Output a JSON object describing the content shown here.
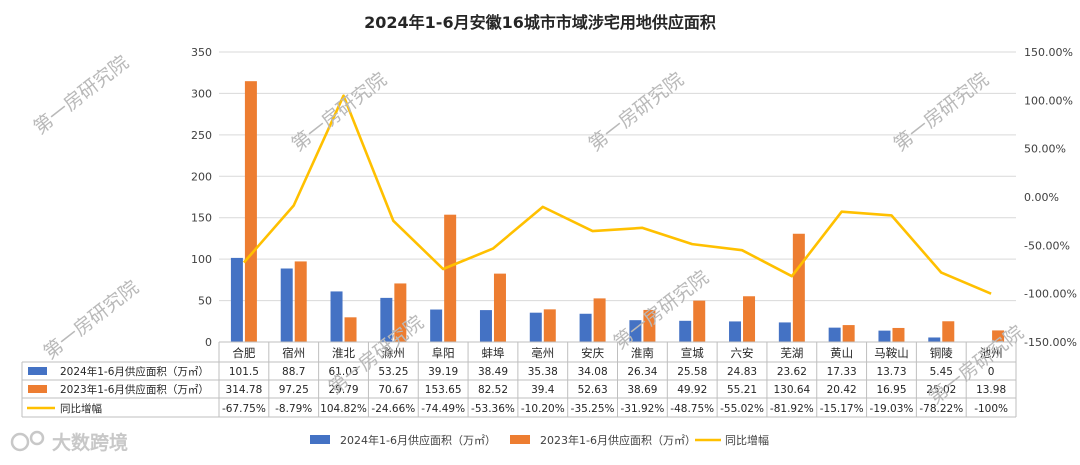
{
  "chart_data": {
    "type": "bar",
    "title": "2024年1-6月安徽16城市市域涉宅用地供应面积",
    "categories": [
      "合肥",
      "宿州",
      "淮北",
      "滁州",
      "阜阳",
      "蚌埠",
      "亳州",
      "安庆",
      "淮南",
      "宣城",
      "六安",
      "芜湖",
      "黄山",
      "马鞍山",
      "铜陵",
      "池州"
    ],
    "series": [
      {
        "name": "2024年1-6月供应面积（万㎡）",
        "kind": "bar",
        "axis": "left",
        "color": "#4472C4",
        "values": [
          101.5,
          88.7,
          61.03,
          53.25,
          39.19,
          38.49,
          35.38,
          34.08,
          26.34,
          25.58,
          24.83,
          23.62,
          17.33,
          13.73,
          5.45,
          0
        ]
      },
      {
        "name": "2023年1-6月供应面积（万㎡）",
        "kind": "bar",
        "axis": "left",
        "color": "#ED7D31",
        "values": [
          314.78,
          97.25,
          29.79,
          70.67,
          153.65,
          82.52,
          39.4,
          52.63,
          38.69,
          49.92,
          55.21,
          130.64,
          20.42,
          16.95,
          25.02,
          13.98
        ]
      },
      {
        "name": "同比增幅",
        "kind": "line",
        "axis": "right",
        "color": "#FFC000",
        "values": [
          -67.75,
          -8.79,
          104.82,
          -24.66,
          -74.49,
          -53.36,
          -10.2,
          -35.25,
          -31.92,
          -48.75,
          -55.02,
          -81.92,
          -15.17,
          -19.03,
          -78.22,
          -100
        ]
      }
    ],
    "table_rows": [
      [
        "101.5",
        "88.7",
        "61.03",
        "53.25",
        "39.19",
        "38.49",
        "35.38",
        "34.08",
        "26.34",
        "25.58",
        "24.83",
        "23.62",
        "17.33",
        "13.73",
        "5.45",
        "0"
      ],
      [
        "314.78",
        "97.25",
        "29.79",
        "70.67",
        "153.65",
        "82.52",
        "39.4",
        "52.63",
        "38.69",
        "49.92",
        "55.21",
        "130.64",
        "20.42",
        "16.95",
        "25.02",
        "13.98"
      ],
      [
        "-67.75%",
        "-8.79%",
        "104.82%",
        "-24.66%",
        "-74.49%",
        "-53.36%",
        "-10.20%",
        "-35.25%",
        "-31.92%",
        "-48.75%",
        "-55.02%",
        "-81.92%",
        "-15.17%",
        "-19.03%",
        "-78.22%",
        "-100%"
      ]
    ],
    "y_left": {
      "min": 0,
      "max": 350,
      "step": 50,
      "ticks": [
        "0",
        "50",
        "100",
        "150",
        "200",
        "250",
        "300",
        "350"
      ]
    },
    "y_right": {
      "min": -150,
      "max": 150,
      "step": 50,
      "ticks": [
        "-150.00%",
        "-100.00%",
        "-50.00%",
        "0.00%",
        "50.00%",
        "100.00%",
        "150.00%"
      ]
    },
    "grid": true,
    "legend_position": "bottom"
  },
  "watermark": "第一房研究院",
  "brand": "大数跨境"
}
